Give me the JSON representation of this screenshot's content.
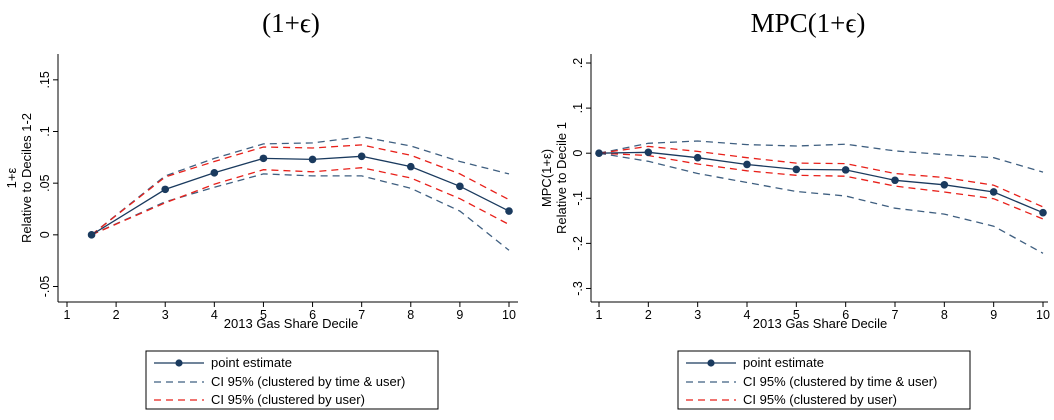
{
  "chart_data": [
    {
      "type": "line",
      "panel_title": "(1+ϵ)",
      "xlabel": "2013 Gas Share Decile",
      "ylabel_lines": [
        "1+ε",
        "Relative to Deciles 1-2"
      ],
      "xticks": [
        1,
        2,
        3,
        4,
        5,
        6,
        7,
        8,
        9,
        10
      ],
      "yticks": [
        -0.05,
        0,
        0.05,
        0.1,
        0.15
      ],
      "ytick_labels": [
        "-.05",
        "0",
        ".05",
        ".1",
        ".15"
      ],
      "xlim": [
        0.9,
        10.1
      ],
      "ylim": [
        -0.065,
        0.175
      ],
      "grid": false,
      "x": [
        1.5,
        3,
        4,
        5,
        6,
        7,
        8,
        9,
        10
      ],
      "series": [
        {
          "name": "point estimate",
          "style": "solid-marker",
          "color": "#1a3a5e",
          "values": [
            0,
            0.044,
            0.06,
            0.074,
            0.073,
            0.076,
            0.066,
            0.047,
            0.023
          ]
        },
        {
          "name": "CI 95% (clustered by time & user)",
          "style": "dash",
          "color": "#3f5f80",
          "lower": [
            0,
            0.032,
            0.046,
            0.059,
            0.057,
            0.057,
            0.045,
            0.023,
            -0.015
          ],
          "upper": [
            0,
            0.057,
            0.074,
            0.088,
            0.089,
            0.095,
            0.086,
            0.071,
            0.059
          ]
        },
        {
          "name": "CI 95% (clustered by user)",
          "style": "dash",
          "color": "#e8201a",
          "lower": [
            0,
            0.031,
            0.049,
            0.063,
            0.061,
            0.065,
            0.055,
            0.035,
            0.01
          ],
          "upper": [
            0,
            0.056,
            0.071,
            0.085,
            0.084,
            0.087,
            0.077,
            0.059,
            0.034
          ]
        }
      ],
      "legend_position": "bottom"
    },
    {
      "type": "line",
      "panel_title": "MPC(1+ϵ)",
      "xlabel": "2013 Gas Share Decile",
      "ylabel_lines": [
        "MPC(1+ε)",
        "Relative to Decile 1"
      ],
      "xticks": [
        1,
        2,
        3,
        4,
        5,
        6,
        7,
        8,
        9,
        10
      ],
      "yticks": [
        -0.3,
        -0.2,
        -0.1,
        0,
        0.1,
        0.2
      ],
      "ytick_labels": [
        "-.3",
        "-.2",
        "-.1",
        "0",
        ".1",
        ".2"
      ],
      "xlim": [
        0.9,
        10.1
      ],
      "ylim": [
        -0.33,
        0.22
      ],
      "grid": false,
      "x": [
        1,
        2,
        3,
        4,
        5,
        6,
        7,
        8,
        9,
        10
      ],
      "series": [
        {
          "name": "point estimate",
          "style": "solid-marker",
          "color": "#1a3a5e",
          "values": [
            0,
            0.002,
            -0.01,
            -0.025,
            -0.036,
            -0.037,
            -0.06,
            -0.07,
            -0.086,
            -0.132
          ]
        },
        {
          "name": "CI 95% (clustered by time & user)",
          "style": "dash",
          "color": "#3f5f80",
          "lower": [
            0,
            -0.018,
            -0.045,
            -0.065,
            -0.085,
            -0.095,
            -0.122,
            -0.135,
            -0.162,
            -0.222
          ],
          "upper": [
            0,
            0.022,
            0.027,
            0.019,
            0.016,
            0.02,
            0.005,
            -0.003,
            -0.01,
            -0.042
          ]
        },
        {
          "name": "CI 95% (clustered by user)",
          "style": "dash",
          "color": "#e8201a",
          "lower": [
            0,
            -0.005,
            -0.024,
            -0.039,
            -0.049,
            -0.051,
            -0.073,
            -0.086,
            -0.101,
            -0.146
          ],
          "upper": [
            0,
            0.015,
            0.004,
            -0.01,
            -0.022,
            -0.023,
            -0.045,
            -0.054,
            -0.071,
            -0.119
          ]
        }
      ],
      "legend_position": "bottom"
    }
  ]
}
